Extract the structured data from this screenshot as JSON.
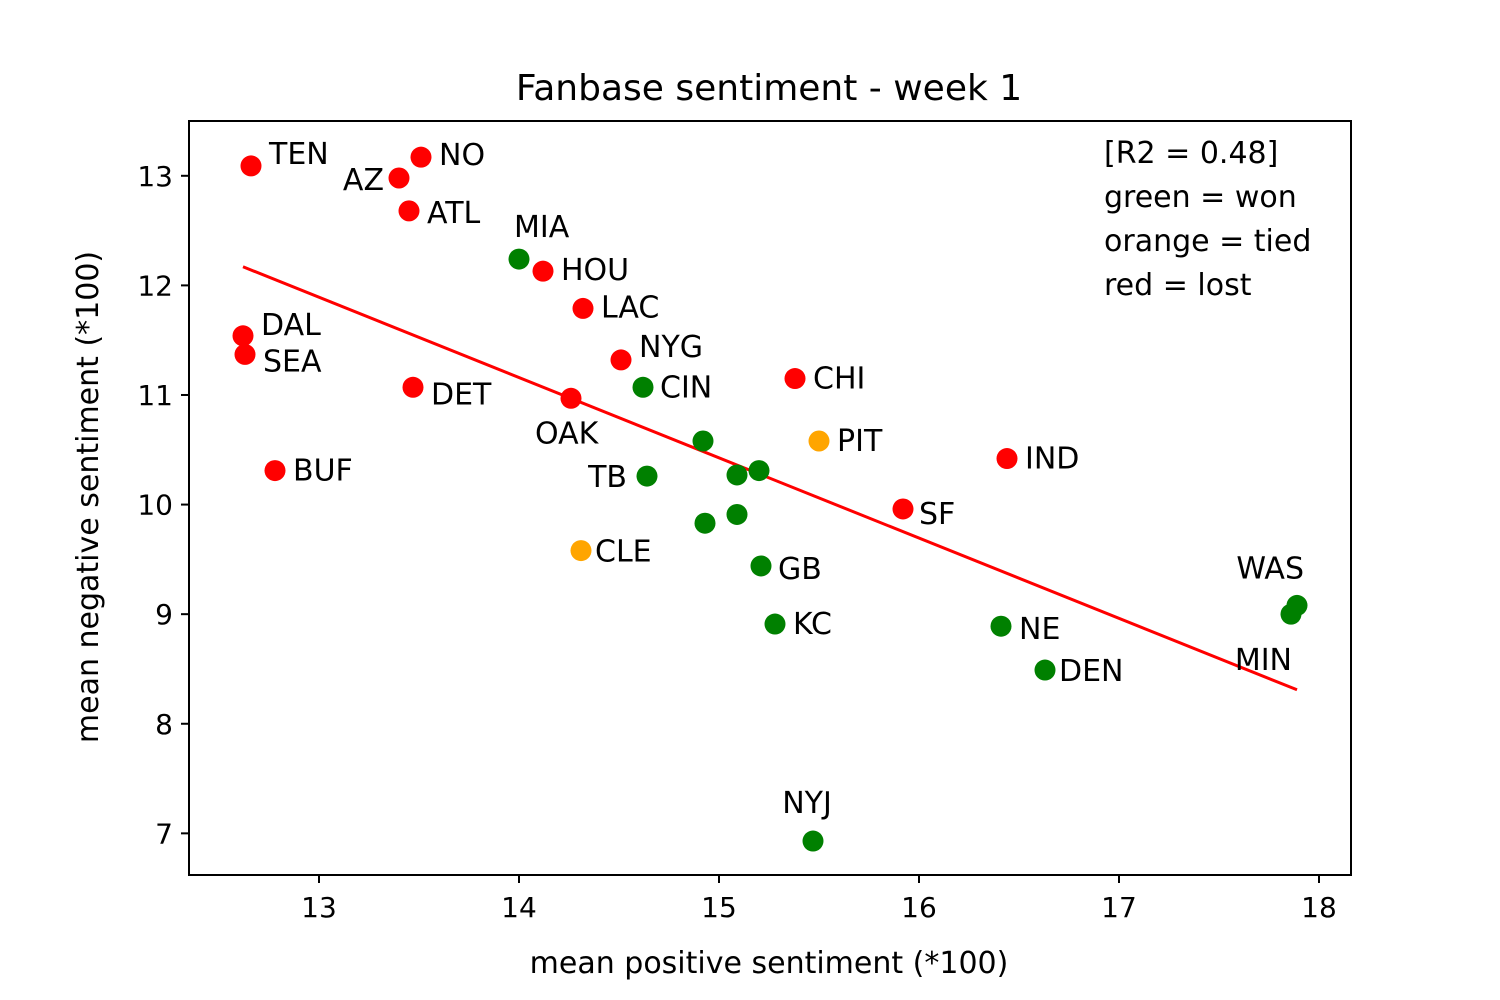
{
  "chart_data": {
    "type": "scatter",
    "title": "Fanbase sentiment - week 1",
    "xlabel": "mean positive sentiment (*100)",
    "ylabel": "mean negative sentiment (*100)",
    "xlim": [
      12.35,
      18.16
    ],
    "ylim": [
      6.62,
      13.5
    ],
    "xticks": [
      13,
      14,
      15,
      16,
      17,
      18
    ],
    "yticks": [
      7,
      8,
      9,
      10,
      11,
      12,
      13
    ],
    "grid": false,
    "colors": {
      "won": "#008000",
      "tied": "#ffa500",
      "lost": "#ff0000",
      "fit": "#ff0000"
    },
    "annotations": [
      "[R2 = 0.48]",
      "green = won",
      "orange = tied",
      "red = lost"
    ],
    "fit_line": {
      "x": [
        12.62,
        17.89
      ],
      "y": [
        12.17,
        8.31
      ]
    },
    "points": [
      {
        "x": 12.66,
        "y": 13.09,
        "label": "TEN",
        "result": "lost"
      },
      {
        "x": 13.4,
        "y": 12.98,
        "label": "AZ",
        "result": "lost"
      },
      {
        "x": 13.51,
        "y": 13.17,
        "label": "NO",
        "result": "lost"
      },
      {
        "x": 13.45,
        "y": 12.68,
        "label": "ATL",
        "result": "lost"
      },
      {
        "x": 14.0,
        "y": 12.24,
        "label": "MIA",
        "result": "won"
      },
      {
        "x": 14.12,
        "y": 12.13,
        "label": "HOU",
        "result": "lost"
      },
      {
        "x": 14.32,
        "y": 11.79,
        "label": "LAC",
        "result": "lost"
      },
      {
        "x": 12.62,
        "y": 11.54,
        "label": "DAL",
        "result": "lost"
      },
      {
        "x": 12.63,
        "y": 11.37,
        "label": "SEA",
        "result": "lost"
      },
      {
        "x": 14.51,
        "y": 11.32,
        "label": "NYG",
        "result": "lost"
      },
      {
        "x": 13.47,
        "y": 11.07,
        "label": "DET",
        "result": "lost"
      },
      {
        "x": 14.62,
        "y": 11.07,
        "label": "CIN",
        "result": "won"
      },
      {
        "x": 14.26,
        "y": 10.97,
        "label": "OAK",
        "result": "lost"
      },
      {
        "x": 15.38,
        "y": 11.15,
        "label": "CHI",
        "result": "lost"
      },
      {
        "x": 15.5,
        "y": 10.58,
        "label": "PIT",
        "result": "tied"
      },
      {
        "x": 14.92,
        "y": 10.58,
        "label": "",
        "result": "won"
      },
      {
        "x": 16.44,
        "y": 10.42,
        "label": "IND",
        "result": "lost"
      },
      {
        "x": 12.78,
        "y": 10.31,
        "label": "BUF",
        "result": "lost"
      },
      {
        "x": 14.64,
        "y": 10.26,
        "label": "TB",
        "result": "won"
      },
      {
        "x": 15.09,
        "y": 10.27,
        "label": "",
        "result": "won"
      },
      {
        "x": 15.2,
        "y": 10.31,
        "label": "",
        "result": "won"
      },
      {
        "x": 15.92,
        "y": 9.96,
        "label": "SF",
        "result": "lost"
      },
      {
        "x": 15.09,
        "y": 9.91,
        "label": "",
        "result": "won"
      },
      {
        "x": 14.93,
        "y": 9.83,
        "label": "",
        "result": "won"
      },
      {
        "x": 14.31,
        "y": 9.58,
        "label": "CLE",
        "result": "tied"
      },
      {
        "x": 15.21,
        "y": 9.44,
        "label": "GB",
        "result": "won"
      },
      {
        "x": 17.89,
        "y": 9.08,
        "label": "WAS",
        "result": "won"
      },
      {
        "x": 17.86,
        "y": 9.0,
        "label": "MIN",
        "result": "won"
      },
      {
        "x": 15.28,
        "y": 8.91,
        "label": "KC",
        "result": "won"
      },
      {
        "x": 16.41,
        "y": 8.89,
        "label": "NE",
        "result": "won"
      },
      {
        "x": 16.63,
        "y": 8.49,
        "label": "DEN",
        "result": "won"
      },
      {
        "x": 15.47,
        "y": 6.93,
        "label": "NYJ",
        "result": "won"
      }
    ]
  }
}
